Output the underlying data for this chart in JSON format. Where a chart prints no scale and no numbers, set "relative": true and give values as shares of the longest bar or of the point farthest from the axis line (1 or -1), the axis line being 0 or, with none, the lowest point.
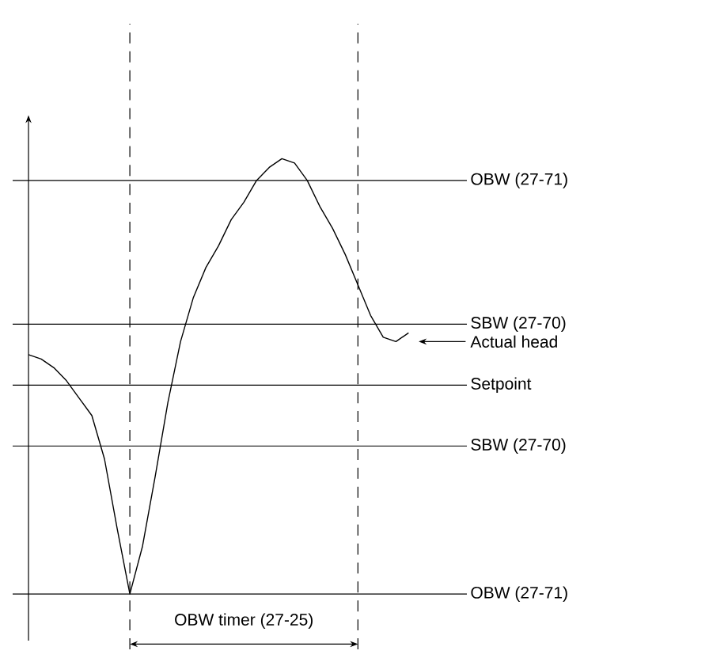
{
  "chart_data": {
    "type": "line",
    "relative": true,
    "color": "#000000",
    "categories": [
      null,
      null,
      null,
      null,
      null,
      null,
      null,
      null,
      null,
      null,
      null,
      null,
      null,
      null,
      null,
      null,
      null,
      null,
      null,
      null,
      null,
      null,
      null,
      null,
      null,
      null,
      null,
      null,
      null,
      null,
      null
    ],
    "values": [
      0.55,
      0.54,
      0.52,
      0.49,
      0.45,
      0.41,
      0.31,
      0.15,
      0,
      0.11,
      0.27,
      0.44,
      0.58,
      0.68,
      0.75,
      0.8,
      0.86,
      0.9,
      0.95,
      0.98,
      1,
      0.99,
      0.95,
      0.89,
      0.84,
      0.78,
      0.71,
      0.64,
      0.59,
      0.58,
      0.6
    ],
    "ref_lines": [
      {
        "axis": "y",
        "value": 0.95,
        "label": "OBW (27-71)"
      },
      {
        "axis": "y",
        "value": 0.62,
        "label": "SBW (27-70)"
      },
      {
        "axis": "y",
        "value": 0.48,
        "label": "Setpoint"
      },
      {
        "axis": "y",
        "value": 0.34,
        "label": "SBW (27-70)"
      },
      {
        "axis": "y",
        "value": 0,
        "label": "OBW (27-71)"
      }
    ],
    "annotations": [
      "Actual head",
      "OBW timer (27-25)"
    ]
  }
}
